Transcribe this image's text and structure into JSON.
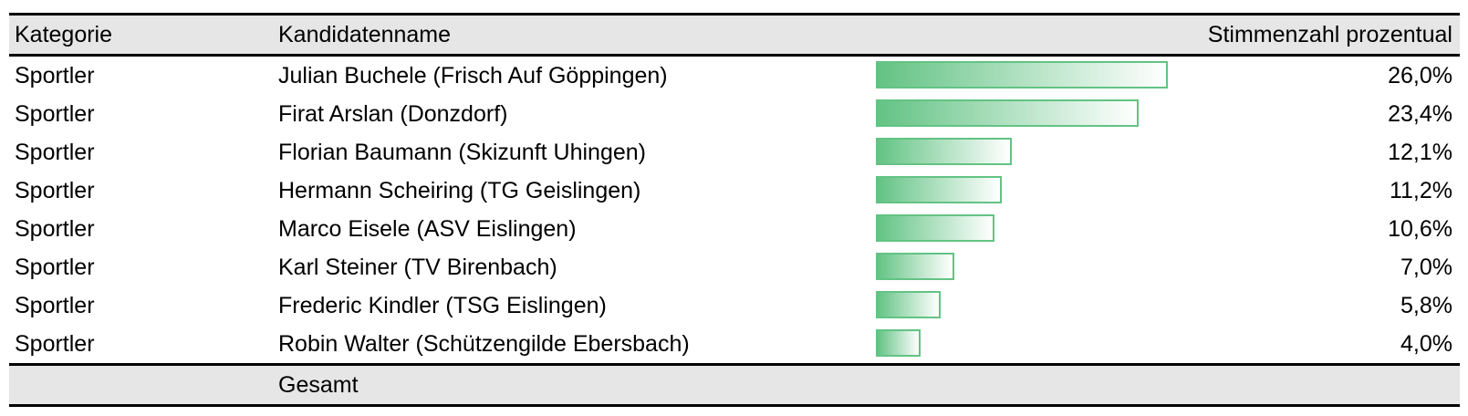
{
  "header": {
    "col_category": "Kategorie",
    "col_name": "Kandidatenname",
    "col_percent": "Stimmenzahl prozentual"
  },
  "rows": [
    {
      "category": "Sportler",
      "name": "Julian Buchele (Frisch Auf Göppingen)",
      "percent_label": "26,0%"
    },
    {
      "category": "Sportler",
      "name": "Firat Arslan (Donzdorf)",
      "percent_label": "23,4%"
    },
    {
      "category": "Sportler",
      "name": "Florian Baumann (Skizunft Uhingen)",
      "percent_label": "12,1%"
    },
    {
      "category": "Sportler",
      "name": "Hermann Scheiring (TG Geislingen)",
      "percent_label": "11,2%"
    },
    {
      "category": "Sportler",
      "name": "Marco Eisele (ASV Eislingen)",
      "percent_label": "10,6%"
    },
    {
      "category": "Sportler",
      "name": "Karl Steiner (TV Birenbach)",
      "percent_label": "7,0%"
    },
    {
      "category": "Sportler",
      "name": "Frederic Kindler (TSG Eislingen)",
      "percent_label": "5,8%"
    },
    {
      "category": "Sportler",
      "name": "Robin Walter (Schützengilde Ebersbach)",
      "percent_label": "4,0%"
    }
  ],
  "footer": {
    "total_label": "Gesamt"
  },
  "colors": {
    "bar_start": "#63c384",
    "bar_end": "#ffffff",
    "bar_border": "#63c384",
    "header_bg": "#e6e6e6"
  },
  "chart_data": {
    "type": "bar",
    "orientation": "horizontal",
    "categories": [
      "Julian Buchele (Frisch Auf Göppingen)",
      "Firat Arslan (Donzdorf)",
      "Florian Baumann (Skizunft Uhingen)",
      "Hermann Scheiring (TG Geislingen)",
      "Marco Eisele (ASV Eislingen)",
      "Karl Steiner (TV Birenbach)",
      "Frederic Kindler (TSG Eislingen)",
      "Robin Walter (Schützengilde Ebersbach)"
    ],
    "values": [
      26.0,
      23.4,
      12.1,
      11.2,
      10.6,
      7.0,
      5.8,
      4.0
    ],
    "title": "",
    "xlabel": "",
    "ylabel": "Stimmenzahl prozentual",
    "xlim": [
      0,
      26.0
    ],
    "grid": false,
    "legend": "none"
  }
}
